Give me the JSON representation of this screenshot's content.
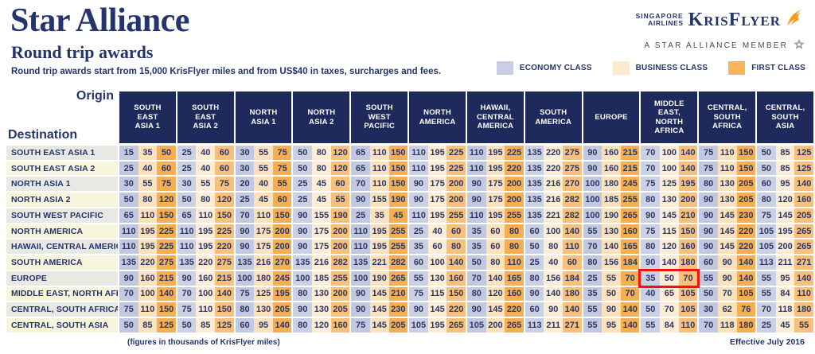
{
  "header": {
    "title": "Star Alliance",
    "subtitle": "Round trip awards",
    "description": "Round trip awards start from 15,000 KrisFlyer miles and from US$40 in taxes, surcharges and fees."
  },
  "logo": {
    "airline_line1": "SINGAPORE",
    "airline_line2": "AIRLINES",
    "program": "KrisFlyer",
    "member_line": "A STAR ALLIANCE MEMBER"
  },
  "legend": [
    {
      "label": "ECONOMY CLASS",
      "color": "#c9cee3"
    },
    {
      "label": "BUSINESS CLASS",
      "color": "#fdeacd"
    },
    {
      "label": "FIRST CLASS",
      "color": "#fbb45c"
    }
  ],
  "table": {
    "origin_label": "Origin",
    "destination_label": "Destination",
    "origins": [
      [
        "SOUTH",
        "EAST",
        "ASIA 1"
      ],
      [
        "SOUTH",
        "EAST",
        "ASIA 2"
      ],
      [
        "NORTH",
        "ASIA 1"
      ],
      [
        "NORTH",
        "ASIA 2"
      ],
      [
        "SOUTH",
        "WEST",
        "PACIFIC"
      ],
      [
        "NORTH",
        "AMERICA"
      ],
      [
        "HAWAII,",
        "CENTRAL",
        "AMERICA"
      ],
      [
        "SOUTH",
        "AMERICA"
      ],
      [
        "EUROPE"
      ],
      [
        "MIDDLE",
        "EAST,",
        "NORTH",
        "AFRICA"
      ],
      [
        "CENTRAL,",
        "SOUTH",
        "AFRICA"
      ],
      [
        "CENTRAL,",
        "SOUTH",
        "ASIA"
      ]
    ],
    "destinations": [
      "SOUTH EAST ASIA 1",
      "SOUTH EAST ASIA 2",
      "NORTH ASIA 1",
      "NORTH ASIA 2",
      "SOUTH WEST PACIFIC",
      "NORTH AMERICA",
      "HAWAII, CENTRAL AMERICA",
      "SOUTH AMERICA",
      "EUROPE",
      "MIDDLE EAST, NORTH AFRICA",
      "CENTRAL, SOUTH AFRICA",
      "CENTRAL, SOUTH ASIA"
    ],
    "classes": [
      "economy",
      "business",
      "first"
    ],
    "cells": [
      [
        [
          15,
          35,
          50
        ],
        [
          25,
          40,
          60
        ],
        [
          30,
          55,
          75
        ],
        [
          50,
          80,
          120
        ],
        [
          65,
          110,
          150
        ],
        [
          110,
          195,
          225
        ],
        [
          110,
          195,
          225
        ],
        [
          135,
          220,
          275
        ],
        [
          90,
          160,
          215
        ],
        [
          70,
          100,
          140
        ],
        [
          75,
          110,
          150
        ],
        [
          50,
          85,
          125
        ]
      ],
      [
        [
          25,
          40,
          60
        ],
        [
          25,
          40,
          60
        ],
        [
          30,
          55,
          75
        ],
        [
          50,
          80,
          120
        ],
        [
          65,
          110,
          150
        ],
        [
          110,
          195,
          225
        ],
        [
          110,
          195,
          220
        ],
        [
          135,
          220,
          275
        ],
        [
          90,
          160,
          215
        ],
        [
          70,
          100,
          140
        ],
        [
          75,
          110,
          150
        ],
        [
          50,
          85,
          125
        ]
      ],
      [
        [
          30,
          55,
          75
        ],
        [
          30,
          55,
          75
        ],
        [
          20,
          40,
          55
        ],
        [
          25,
          45,
          60
        ],
        [
          70,
          110,
          150
        ],
        [
          90,
          175,
          200
        ],
        [
          90,
          175,
          200
        ],
        [
          135,
          216,
          270
        ],
        [
          100,
          180,
          245
        ],
        [
          75,
          125,
          195
        ],
        [
          80,
          130,
          205
        ],
        [
          60,
          95,
          140
        ]
      ],
      [
        [
          50,
          80,
          120
        ],
        [
          50,
          80,
          120
        ],
        [
          25,
          45,
          60
        ],
        [
          25,
          45,
          55
        ],
        [
          90,
          155,
          190
        ],
        [
          90,
          175,
          200
        ],
        [
          90,
          175,
          200
        ],
        [
          135,
          216,
          282
        ],
        [
          100,
          185,
          255
        ],
        [
          80,
          130,
          200
        ],
        [
          90,
          130,
          205
        ],
        [
          80,
          120,
          160
        ]
      ],
      [
        [
          65,
          110,
          150
        ],
        [
          65,
          110,
          150
        ],
        [
          70,
          110,
          150
        ],
        [
          90,
          155,
          190
        ],
        [
          25,
          35,
          45
        ],
        [
          110,
          195,
          255
        ],
        [
          110,
          195,
          255
        ],
        [
          135,
          221,
          282
        ],
        [
          100,
          190,
          265
        ],
        [
          90,
          145,
          210
        ],
        [
          90,
          145,
          230
        ],
        [
          75,
          145,
          205
        ]
      ],
      [
        [
          110,
          195,
          225
        ],
        [
          110,
          195,
          225
        ],
        [
          90,
          175,
          200
        ],
        [
          90,
          175,
          200
        ],
        [
          110,
          195,
          255
        ],
        [
          25,
          40,
          60
        ],
        [
          35,
          60,
          80
        ],
        [
          60,
          100,
          140
        ],
        [
          55,
          130,
          160
        ],
        [
          75,
          115,
          150
        ],
        [
          90,
          145,
          220
        ],
        [
          105,
          195,
          265
        ]
      ],
      [
        [
          110,
          195,
          225
        ],
        [
          110,
          195,
          220
        ],
        [
          90,
          175,
          200
        ],
        [
          90,
          175,
          200
        ],
        [
          110,
          195,
          255
        ],
        [
          35,
          60,
          80
        ],
        [
          35,
          60,
          80
        ],
        [
          50,
          80,
          110
        ],
        [
          70,
          140,
          165
        ],
        [
          80,
          120,
          160
        ],
        [
          90,
          145,
          220
        ],
        [
          105,
          200,
          265
        ]
      ],
      [
        [
          135,
          220,
          275
        ],
        [
          135,
          220,
          275
        ],
        [
          135,
          216,
          270
        ],
        [
          135,
          216,
          282
        ],
        [
          135,
          221,
          282
        ],
        [
          60,
          100,
          140
        ],
        [
          50,
          80,
          110
        ],
        [
          25,
          40,
          60
        ],
        [
          80,
          156,
          184
        ],
        [
          90,
          140,
          180
        ],
        [
          60,
          90,
          140
        ],
        [
          113,
          211,
          271
        ]
      ],
      [
        [
          90,
          160,
          215
        ],
        [
          90,
          160,
          215
        ],
        [
          100,
          180,
          245
        ],
        [
          100,
          185,
          255
        ],
        [
          100,
          190,
          265
        ],
        [
          55,
          130,
          160
        ],
        [
          70,
          140,
          165
        ],
        [
          80,
          156,
          184
        ],
        [
          25,
          55,
          70
        ],
        [
          35,
          50,
          70
        ],
        [
          55,
          90,
          140
        ],
        [
          55,
          95,
          140
        ]
      ],
      [
        [
          70,
          100,
          140
        ],
        [
          70,
          100,
          140
        ],
        [
          75,
          125,
          195
        ],
        [
          80,
          130,
          200
        ],
        [
          90,
          145,
          210
        ],
        [
          75,
          115,
          150
        ],
        [
          80,
          120,
          160
        ],
        [
          90,
          140,
          180
        ],
        [
          35,
          50,
          70
        ],
        [
          40,
          65,
          105
        ],
        [
          50,
          70,
          105
        ],
        [
          55,
          84,
          110
        ]
      ],
      [
        [
          75,
          110,
          150
        ],
        [
          75,
          110,
          150
        ],
        [
          80,
          130,
          205
        ],
        [
          90,
          130,
          205
        ],
        [
          90,
          145,
          230
        ],
        [
          90,
          145,
          220
        ],
        [
          90,
          145,
          220
        ],
        [
          60,
          90,
          140
        ],
        [
          55,
          90,
          140
        ],
        [
          50,
          70,
          105
        ],
        [
          30,
          62,
          76
        ],
        [
          70,
          118,
          180
        ]
      ],
      [
        [
          50,
          85,
          125
        ],
        [
          50,
          85,
          125
        ],
        [
          60,
          95,
          140
        ],
        [
          80,
          120,
          160
        ],
        [
          75,
          145,
          205
        ],
        [
          105,
          195,
          265
        ],
        [
          105,
          200,
          265
        ],
        [
          113,
          211,
          271
        ],
        [
          55,
          95,
          140
        ],
        [
          55,
          84,
          110
        ],
        [
          70,
          118,
          180
        ],
        [
          25,
          45,
          55
        ]
      ]
    ],
    "highlight": {
      "row": 8,
      "col": 9,
      "values": [
        35,
        50,
        70
      ]
    }
  },
  "footer": {
    "note": "(figures in thousands of KrisFlyer miles)",
    "effective": "Effective July 2016"
  },
  "colors": {
    "navy": "#1e2a5c",
    "ink": "#24346e",
    "num": "#2b3765",
    "eco-a": "#c2c8df",
    "biz-a": "#fbe2bc",
    "fir-a": "#f6ae53",
    "eco-b": "#cbd0e4",
    "biz-b": "#fdecd6",
    "fir-b": "#f8c07a",
    "rowlab-a": "#e9e9e4",
    "rowlab-b": "#f7f5dc",
    "hl": "#ee1511"
  }
}
